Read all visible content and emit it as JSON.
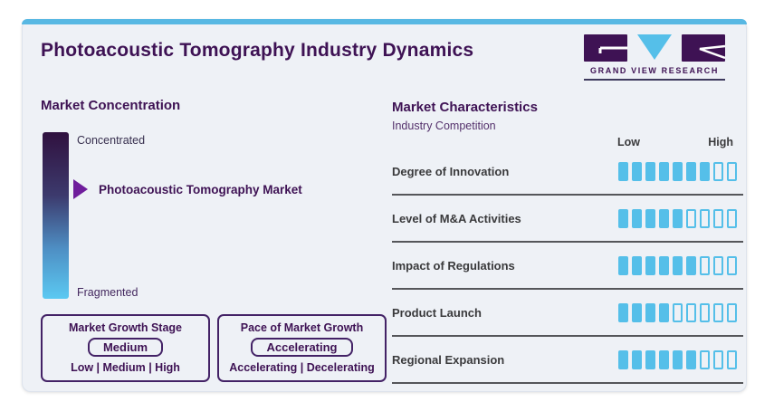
{
  "header": {
    "title": "Photoacoustic Tomography Industry Dynamics",
    "logo_brand": "GRAND VIEW RESEARCH"
  },
  "market_concentration": {
    "heading": "Market Concentration",
    "scale_top": "Concentrated",
    "scale_bottom": "Fragmented",
    "marker_label": "Photoacoustic Tomography Market",
    "growth_stage_box": {
      "title": "Market Growth Stage",
      "value": "Medium",
      "options": "Low | Medium | High"
    },
    "growth_pace_box": {
      "title": "Pace of Market Growth",
      "value": "Accelerating",
      "options": "Accelerating | Decelerating"
    }
  },
  "market_characteristics": {
    "heading": "Market Characteristics",
    "subheading": "Industry Competition",
    "scale_low_label": "Low",
    "scale_high_label": "High",
    "rows": [
      {
        "label": "Degree of Innovation",
        "filled": 7,
        "total": 9
      },
      {
        "label": "Level of M&A Activities",
        "filled": 5,
        "total": 9
      },
      {
        "label": "Impact of Regulations",
        "filled": 6,
        "total": 9
      },
      {
        "label": "Product Launch",
        "filled": 4,
        "total": 9
      },
      {
        "label": "Regional Expansion",
        "filled": 6,
        "total": 9
      }
    ]
  },
  "colors": {
    "brand_purple": "#3e1254",
    "accent_blue": "#55bfe9",
    "arrow_purple": "#6f1d9c",
    "card_background": "#eef1f6",
    "row_label_gray": "#3a3a3c",
    "separator_gray": "#55565a"
  },
  "chart_data": {
    "type": "bar",
    "title": "Photoacoustic Tomography Industry Dynamics",
    "subtitle": "Market Characteristics - Industry Competition",
    "categories": [
      "Degree of Innovation",
      "Level of M&A Activities",
      "Impact of Regulations",
      "Product Launch",
      "Regional Expansion"
    ],
    "values": [
      7,
      5,
      6,
      4,
      6
    ],
    "value_scale": {
      "min": 0,
      "max": 9,
      "left_label": "Low",
      "right_label": "High"
    },
    "market_concentration": {
      "axis_top": "Concentrated",
      "axis_bottom": "Fragmented",
      "marker": "Photoacoustic Tomography Market"
    },
    "market_growth_stage": {
      "value": "Medium",
      "options": [
        "Low",
        "Medium",
        "High"
      ]
    },
    "pace_of_market_growth": {
      "value": "Accelerating",
      "options": [
        "Accelerating",
        "Decelerating"
      ]
    }
  }
}
